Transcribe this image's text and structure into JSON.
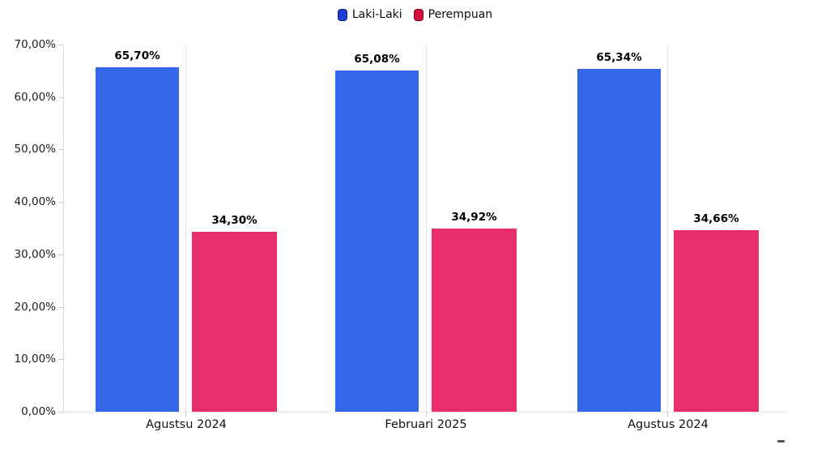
{
  "chart_data": {
    "type": "bar",
    "title": "",
    "xlabel": "",
    "ylabel": "",
    "categories": [
      "Agustsu 2024",
      "Februari 2025",
      "Agustus 2024"
    ],
    "series": [
      {
        "name": "Laki-Laki",
        "color": "#3468e8",
        "legend_color": "#1e40d2",
        "legend_border": "#10246e",
        "values": [
          65.7,
          65.08,
          65.34
        ],
        "value_labels": [
          "65,70%",
          "65,08%",
          "65,34%"
        ]
      },
      {
        "name": "Perempuan",
        "color": "#e92e6c",
        "legend_color": "#d60f3c",
        "legend_border": "#6b0a1f",
        "values": [
          34.3,
          34.92,
          34.66
        ],
        "value_labels": [
          "34,30%",
          "34,92%",
          "34,66%"
        ]
      }
    ],
    "y_ticks": [
      "70,00%",
      "60,00%",
      "50,00%",
      "40,00%",
      "30,00%",
      "20,00%",
      "10,00%",
      "0,00%"
    ],
    "ylim": [
      0,
      70
    ],
    "legend_position": "top-center",
    "grid": "vertical gridline at each category center, light gray",
    "value_label_format": "percent with comma decimal separator, bold, above bar"
  }
}
